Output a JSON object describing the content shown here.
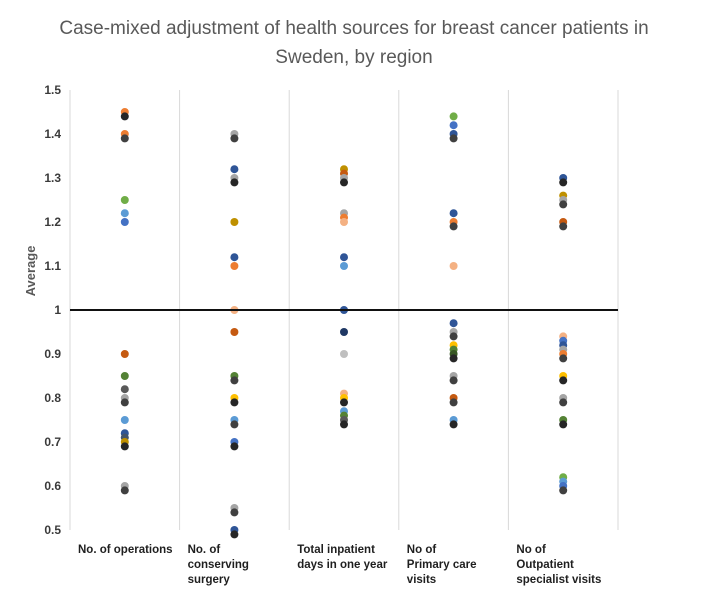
{
  "chart_data": {
    "type": "scatter",
    "title": [
      "Case-mixed adjustment of health sources for breast cancer patients in",
      "Sweden, by region"
    ],
    "ylabel": "Average",
    "xlabel": "",
    "ylim": [
      0.5,
      1.5
    ],
    "yticks": [
      "0.5",
      "0.6",
      "0.7",
      "0.8",
      "0.9",
      "1",
      "1.1",
      "1.2",
      "1.3",
      "1.4",
      "1.5"
    ],
    "reference_line": 1.0,
    "grid": "vertical",
    "categories": [
      "No. of operations",
      "No. of\nconserving\nsurgery",
      "Total inpatient\ndays in one year",
      "No of\nPrimary care\nvisits",
      "No of\nOutpatient\nspecialist visits"
    ],
    "points": [
      [
        {
          "y": 1.45,
          "color": "#ed7d31"
        },
        {
          "y": 1.44,
          "color": "#262626"
        },
        {
          "y": 1.4,
          "color": "#ed7d31"
        },
        {
          "y": 1.39,
          "color": "#404040"
        },
        {
          "y": 1.25,
          "color": "#70ad47"
        },
        {
          "y": 1.22,
          "color": "#5b9bd5"
        },
        {
          "y": 1.2,
          "color": "#4472c4"
        },
        {
          "y": 0.9,
          "color": "#c55a11"
        },
        {
          "y": 0.85,
          "color": "#548235"
        },
        {
          "y": 0.82,
          "color": "#595959"
        },
        {
          "y": 0.8,
          "color": "#a5a5a5"
        },
        {
          "y": 0.79,
          "color": "#404040"
        },
        {
          "y": 0.75,
          "color": "#5b9bd5"
        },
        {
          "y": 0.72,
          "color": "#2f5597"
        },
        {
          "y": 0.71,
          "color": "#44546a"
        },
        {
          "y": 0.7,
          "color": "#bf9000"
        },
        {
          "y": 0.69,
          "color": "#262626"
        },
        {
          "y": 0.6,
          "color": "#a5a5a5"
        },
        {
          "y": 0.59,
          "color": "#404040"
        }
      ],
      [
        {
          "y": 1.4,
          "color": "#a5a5a5"
        },
        {
          "y": 1.39,
          "color": "#404040"
        },
        {
          "y": 1.32,
          "color": "#2f5597"
        },
        {
          "y": 1.3,
          "color": "#a5a5a5"
        },
        {
          "y": 1.29,
          "color": "#262626"
        },
        {
          "y": 1.2,
          "color": "#bf9000"
        },
        {
          "y": 1.12,
          "color": "#2f5597"
        },
        {
          "y": 1.1,
          "color": "#ed7d31"
        },
        {
          "y": 1.0,
          "color": "#f4b183"
        },
        {
          "y": 0.95,
          "color": "#c55a11"
        },
        {
          "y": 0.85,
          "color": "#548235"
        },
        {
          "y": 0.84,
          "color": "#404040"
        },
        {
          "y": 0.8,
          "color": "#ffc000"
        },
        {
          "y": 0.79,
          "color": "#262626"
        },
        {
          "y": 0.75,
          "color": "#5b9bd5"
        },
        {
          "y": 0.74,
          "color": "#404040"
        },
        {
          "y": 0.7,
          "color": "#4472c4"
        },
        {
          "y": 0.69,
          "color": "#262626"
        },
        {
          "y": 0.55,
          "color": "#a5a5a5"
        },
        {
          "y": 0.54,
          "color": "#404040"
        },
        {
          "y": 0.5,
          "color": "#2f5597"
        },
        {
          "y": 0.49,
          "color": "#262626"
        }
      ],
      [
        {
          "y": 1.32,
          "color": "#bf9000"
        },
        {
          "y": 1.31,
          "color": "#c55a11"
        },
        {
          "y": 1.3,
          "color": "#a5a5a5"
        },
        {
          "y": 1.29,
          "color": "#262626"
        },
        {
          "y": 1.22,
          "color": "#a5a5a5"
        },
        {
          "y": 1.21,
          "color": "#ed7d31"
        },
        {
          "y": 1.2,
          "color": "#f4b183"
        },
        {
          "y": 1.12,
          "color": "#2f5597"
        },
        {
          "y": 1.1,
          "color": "#5b9bd5"
        },
        {
          "y": 1.0,
          "color": "#2f5597"
        },
        {
          "y": 0.95,
          "color": "#1f3864"
        },
        {
          "y": 0.9,
          "color": "#bfbfbf"
        },
        {
          "y": 0.81,
          "color": "#f4b183"
        },
        {
          "y": 0.8,
          "color": "#ffc000"
        },
        {
          "y": 0.79,
          "color": "#262626"
        },
        {
          "y": 0.77,
          "color": "#5b9bd5"
        },
        {
          "y": 0.76,
          "color": "#548235"
        },
        {
          "y": 0.75,
          "color": "#595959"
        },
        {
          "y": 0.74,
          "color": "#262626"
        }
      ],
      [
        {
          "y": 1.44,
          "color": "#70ad47"
        },
        {
          "y": 1.42,
          "color": "#4472c4"
        },
        {
          "y": 1.4,
          "color": "#2f5597"
        },
        {
          "y": 1.39,
          "color": "#404040"
        },
        {
          "y": 1.22,
          "color": "#2f5597"
        },
        {
          "y": 1.2,
          "color": "#ed7d31"
        },
        {
          "y": 1.19,
          "color": "#404040"
        },
        {
          "y": 1.1,
          "color": "#f4b183"
        },
        {
          "y": 0.97,
          "color": "#2f5597"
        },
        {
          "y": 0.95,
          "color": "#a5a5a5"
        },
        {
          "y": 0.94,
          "color": "#404040"
        },
        {
          "y": 0.92,
          "color": "#ffc000"
        },
        {
          "y": 0.91,
          "color": "#548235"
        },
        {
          "y": 0.9,
          "color": "#375623"
        },
        {
          "y": 0.89,
          "color": "#262626"
        },
        {
          "y": 0.85,
          "color": "#a5a5a5"
        },
        {
          "y": 0.84,
          "color": "#404040"
        },
        {
          "y": 0.8,
          "color": "#c55a11"
        },
        {
          "y": 0.79,
          "color": "#404040"
        },
        {
          "y": 0.75,
          "color": "#5b9bd5"
        },
        {
          "y": 0.74,
          "color": "#262626"
        }
      ],
      [
        {
          "y": 1.3,
          "color": "#2f5597"
        },
        {
          "y": 1.29,
          "color": "#262626"
        },
        {
          "y": 1.26,
          "color": "#bf9000"
        },
        {
          "y": 1.25,
          "color": "#a5a5a5"
        },
        {
          "y": 1.24,
          "color": "#404040"
        },
        {
          "y": 1.2,
          "color": "#c55a11"
        },
        {
          "y": 1.19,
          "color": "#404040"
        },
        {
          "y": 0.94,
          "color": "#f4b183"
        },
        {
          "y": 0.93,
          "color": "#4472c4"
        },
        {
          "y": 0.92,
          "color": "#2f5597"
        },
        {
          "y": 0.91,
          "color": "#a5a5a5"
        },
        {
          "y": 0.9,
          "color": "#ed7d31"
        },
        {
          "y": 0.89,
          "color": "#404040"
        },
        {
          "y": 0.85,
          "color": "#ffc000"
        },
        {
          "y": 0.84,
          "color": "#262626"
        },
        {
          "y": 0.8,
          "color": "#a5a5a5"
        },
        {
          "y": 0.79,
          "color": "#404040"
        },
        {
          "y": 0.75,
          "color": "#548235"
        },
        {
          "y": 0.74,
          "color": "#262626"
        },
        {
          "y": 0.62,
          "color": "#70ad47"
        },
        {
          "y": 0.61,
          "color": "#5b9bd5"
        },
        {
          "y": 0.6,
          "color": "#4472c4"
        },
        {
          "y": 0.59,
          "color": "#404040"
        }
      ]
    ]
  }
}
